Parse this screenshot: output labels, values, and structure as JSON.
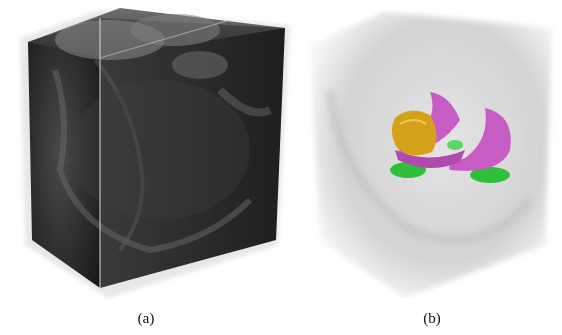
{
  "figure": {
    "panel_a": {
      "caption": "(a)",
      "description_icon": "ct-volume-cube-icon"
    },
    "panel_b": {
      "caption": "(b)",
      "description_icon": "segmented-volume-icon"
    },
    "colors": {
      "volume_dark": "#2b2b2b",
      "volume_light": "#d8d8d8",
      "segment_yellow": "#d4a21a",
      "segment_magenta": "#c65cc4",
      "segment_green": "#2fbf3a"
    }
  }
}
